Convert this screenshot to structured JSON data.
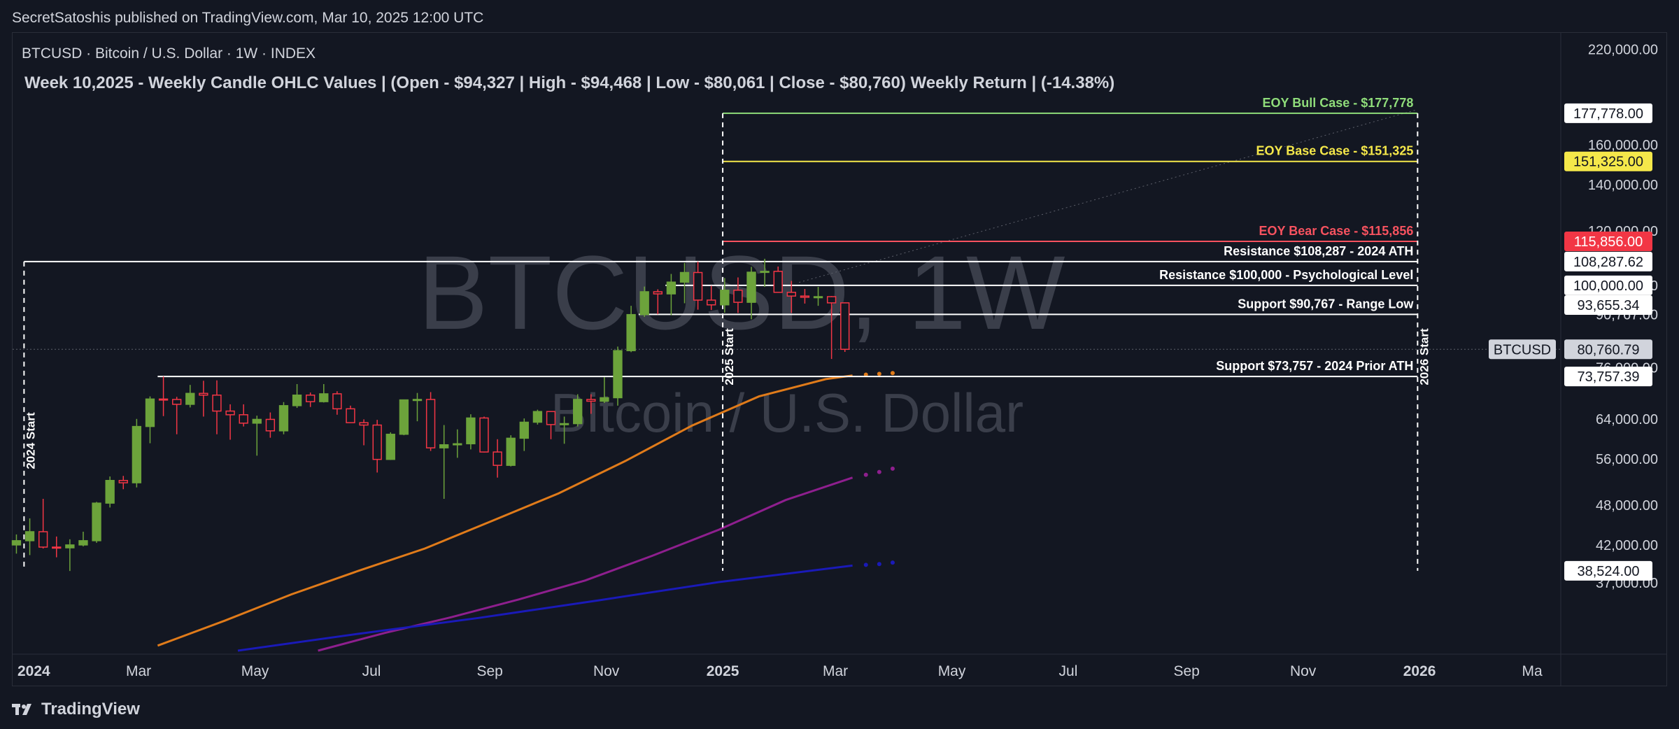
{
  "publisher": "SecretSatoshis published on TradingView.com, Mar 10, 2025 12:00 UTC",
  "brand": "TradingView",
  "chart_data": {
    "type": "candlestick",
    "symbol_line": "BTCUSD · Bitcoin / U.S. Dollar · 1W · INDEX",
    "title": "Week 10,2025 - Weekly Candle OHLC Values | (Open - $94,327 | High - $94,468 | Low - $80,061 | Close - $80,760) Weekly Return | (-14.38%)",
    "watermark": {
      "main": "BTCUSD, 1W",
      "sub": "Bitcoin / U.S. Dollar"
    },
    "log_scale": true,
    "y_range": [
      29500,
      232000
    ],
    "x_range": [
      "2023-12-26",
      "2026-03-16"
    ],
    "x_ticks": [
      {
        "label": "2024",
        "date": "2024-01-01",
        "bold": true
      },
      {
        "label": "Mar",
        "date": "2024-03-01",
        "bold": false
      },
      {
        "label": "May",
        "date": "2024-05-01",
        "bold": false
      },
      {
        "label": "Jul",
        "date": "2024-07-01",
        "bold": false
      },
      {
        "label": "Sep",
        "date": "2024-09-01",
        "bold": false
      },
      {
        "label": "Nov",
        "date": "2024-11-01",
        "bold": false
      },
      {
        "label": "2025",
        "date": "2025-01-01",
        "bold": true
      },
      {
        "label": "Mar",
        "date": "2025-03-01",
        "bold": false
      },
      {
        "label": "May",
        "date": "2025-05-01",
        "bold": false
      },
      {
        "label": "Jul",
        "date": "2025-07-01",
        "bold": false
      },
      {
        "label": "Sep",
        "date": "2025-09-01",
        "bold": false
      },
      {
        "label": "Nov",
        "date": "2025-11-01",
        "bold": false
      },
      {
        "label": "2026",
        "date": "2026-01-01",
        "bold": true
      },
      {
        "label": "Ma",
        "date": "2026-03-01",
        "bold": false
      }
    ],
    "y_ticks": [
      "220,000.00",
      "160,000.00",
      "140,000.00",
      "120,000.00",
      "100,000.00",
      "90,767.00",
      "76,000.00",
      "64,000.00",
      "56,000.00",
      "48,000.00",
      "42,000.00",
      "37,000.00"
    ],
    "price_badges": [
      {
        "label": "177,778.00",
        "value": 177778,
        "bg": "#ffffff",
        "fg": "#131722"
      },
      {
        "label": "151,325.00",
        "value": 151325,
        "bg": "#f5e84a",
        "fg": "#131722"
      },
      {
        "label": "115,856.00",
        "value": 115856,
        "bg": "#f23645",
        "fg": "#ffffff"
      },
      {
        "label": "108,287.62",
        "value": 108287.62,
        "bg": "#ffffff",
        "fg": "#131722"
      },
      {
        "label": "100,000.00",
        "value": 100000,
        "bg": "#ffffff",
        "fg": "#131722"
      },
      {
        "label": "93,655.34",
        "value": 93655.34,
        "bg": "#ffffff",
        "fg": "#131722"
      },
      {
        "label": "80,760.79",
        "value": 80760.79,
        "bg": "#d1d4dc",
        "fg": "#131722"
      },
      {
        "label": "73,757.39",
        "value": 73757.39,
        "bg": "#ffffff",
        "fg": "#131722"
      },
      {
        "label": "38,524.00",
        "value": 38524,
        "bg": "#ffffff",
        "fg": "#131722"
      }
    ],
    "symbol_badge": "BTCUSD",
    "levels": [
      {
        "label": "EOY Bull Case - $177,778",
        "value": 177778,
        "color": "#8fdc7a",
        "start": "2025-01-01",
        "end": "2025-12-31"
      },
      {
        "label": "EOY Base Case - $151,325",
        "value": 151325,
        "color": "#f5e84a",
        "start": "2025-01-01",
        "end": "2025-12-31"
      },
      {
        "label": "EOY Bear Case - $115,856",
        "value": 115856,
        "color": "#f7525f",
        "start": "2025-01-01",
        "end": "2025-12-31"
      },
      {
        "label": "Resistance $108,287 - 2024 ATH",
        "value": 108287,
        "color": "#ffffff",
        "start": "2024-01-01",
        "end": "2025-12-31"
      },
      {
        "label": "Resistance $100,000 - Psychological Level",
        "value": 100000,
        "color": "#ffffff",
        "start": "2024-12-02",
        "end": "2025-12-31"
      },
      {
        "label": "Support $90,767 - Range Low",
        "value": 90767,
        "color": "#ffffff",
        "start": "2024-11-18",
        "end": "2025-12-31"
      },
      {
        "label": "Support $73,757 - 2024 Prior ATH",
        "value": 73757,
        "color": "#ffffff",
        "start": "2024-03-11",
        "end": "2025-12-31"
      }
    ],
    "verticals": [
      {
        "label": "2024 Start",
        "date": "2024-01-01",
        "top": 108287,
        "bottom": 38524
      },
      {
        "label": "2025 Start",
        "date": "2025-01-01",
        "top": 177778,
        "bottom": 38524
      },
      {
        "label": "2026 Start",
        "date": "2025-12-31",
        "top": 177778,
        "bottom": 38524
      }
    ],
    "candles": [
      {
        "date": "2023-12-25",
        "o": 42000,
        "h": 43500,
        "l": 40800,
        "c": 42600
      },
      {
        "date": "2024-01-01",
        "o": 42600,
        "h": 45900,
        "l": 40600,
        "c": 43900
      },
      {
        "date": "2024-01-08",
        "o": 43900,
        "h": 49000,
        "l": 41500,
        "c": 41700
      },
      {
        "date": "2024-01-15",
        "o": 41700,
        "h": 43200,
        "l": 40300,
        "c": 41600
      },
      {
        "date": "2024-01-22",
        "o": 41600,
        "h": 42800,
        "l": 38500,
        "c": 42000
      },
      {
        "date": "2024-01-29",
        "o": 42000,
        "h": 43900,
        "l": 41800,
        "c": 42600
      },
      {
        "date": "2024-02-05",
        "o": 42600,
        "h": 48500,
        "l": 42300,
        "c": 48300
      },
      {
        "date": "2024-02-12",
        "o": 48300,
        "h": 52800,
        "l": 47600,
        "c": 52100
      },
      {
        "date": "2024-02-19",
        "o": 52100,
        "h": 52900,
        "l": 50600,
        "c": 51700
      },
      {
        "date": "2024-02-26",
        "o": 51700,
        "h": 64000,
        "l": 50900,
        "c": 62400
      },
      {
        "date": "2024-03-04",
        "o": 62400,
        "h": 69000,
        "l": 59000,
        "c": 68400
      },
      {
        "date": "2024-03-11",
        "o": 68400,
        "h": 73757,
        "l": 64600,
        "c": 68300
      },
      {
        "date": "2024-03-18",
        "o": 68300,
        "h": 68900,
        "l": 60800,
        "c": 67200
      },
      {
        "date": "2024-03-25",
        "o": 67200,
        "h": 71700,
        "l": 66500,
        "c": 69700
      },
      {
        "date": "2024-04-01",
        "o": 69700,
        "h": 72700,
        "l": 64500,
        "c": 69300
      },
      {
        "date": "2024-04-08",
        "o": 69300,
        "h": 72800,
        "l": 60800,
        "c": 65700
      },
      {
        "date": "2024-04-15",
        "o": 65700,
        "h": 67200,
        "l": 59700,
        "c": 64900
      },
      {
        "date": "2024-04-22",
        "o": 64900,
        "h": 67200,
        "l": 62400,
        "c": 63100
      },
      {
        "date": "2024-04-29",
        "o": 63100,
        "h": 64700,
        "l": 56600,
        "c": 63900
      },
      {
        "date": "2024-05-06",
        "o": 63900,
        "h": 65400,
        "l": 60100,
        "c": 61500
      },
      {
        "date": "2024-05-13",
        "o": 61500,
        "h": 67700,
        "l": 60800,
        "c": 66900
      },
      {
        "date": "2024-05-20",
        "o": 66900,
        "h": 71900,
        "l": 66400,
        "c": 69300
      },
      {
        "date": "2024-05-27",
        "o": 69300,
        "h": 69900,
        "l": 66600,
        "c": 67800
      },
      {
        "date": "2024-06-03",
        "o": 67800,
        "h": 71900,
        "l": 67600,
        "c": 69600
      },
      {
        "date": "2024-06-10",
        "o": 69600,
        "h": 70200,
        "l": 64900,
        "c": 66200
      },
      {
        "date": "2024-06-17",
        "o": 66200,
        "h": 66900,
        "l": 63400,
        "c": 63200
      },
      {
        "date": "2024-06-24",
        "o": 63200,
        "h": 63900,
        "l": 58600,
        "c": 62700
      },
      {
        "date": "2024-07-01",
        "o": 62700,
        "h": 63800,
        "l": 53500,
        "c": 55900
      },
      {
        "date": "2024-07-08",
        "o": 55900,
        "h": 61200,
        "l": 55800,
        "c": 60800
      },
      {
        "date": "2024-07-15",
        "o": 60800,
        "h": 68300,
        "l": 60600,
        "c": 68200
      },
      {
        "date": "2024-07-22",
        "o": 68200,
        "h": 69800,
        "l": 63500,
        "c": 68300
      },
      {
        "date": "2024-07-29",
        "o": 68300,
        "h": 70000,
        "l": 57500,
        "c": 58100
      },
      {
        "date": "2024-08-05",
        "o": 58100,
        "h": 62700,
        "l": 49000,
        "c": 58700
      },
      {
        "date": "2024-08-12",
        "o": 58700,
        "h": 61800,
        "l": 56200,
        "c": 58900
      },
      {
        "date": "2024-08-19",
        "o": 58900,
        "h": 65000,
        "l": 57800,
        "c": 64200
      },
      {
        "date": "2024-08-26",
        "o": 64200,
        "h": 64500,
        "l": 57200,
        "c": 57300
      },
      {
        "date": "2024-09-02",
        "o": 57300,
        "h": 59800,
        "l": 52600,
        "c": 54800
      },
      {
        "date": "2024-09-09",
        "o": 54800,
        "h": 60600,
        "l": 54600,
        "c": 60000
      },
      {
        "date": "2024-09-16",
        "o": 60000,
        "h": 64100,
        "l": 57500,
        "c": 63300
      },
      {
        "date": "2024-09-23",
        "o": 63300,
        "h": 66000,
        "l": 62800,
        "c": 65600
      },
      {
        "date": "2024-09-30",
        "o": 65600,
        "h": 65700,
        "l": 59800,
        "c": 62800
      },
      {
        "date": "2024-10-07",
        "o": 62800,
        "h": 64500,
        "l": 58900,
        "c": 63000
      },
      {
        "date": "2024-10-14",
        "o": 63000,
        "h": 69500,
        "l": 62400,
        "c": 68300
      },
      {
        "date": "2024-10-21",
        "o": 68300,
        "h": 69500,
        "l": 65100,
        "c": 67900
      },
      {
        "date": "2024-10-28",
        "o": 67900,
        "h": 73600,
        "l": 67500,
        "c": 68700
      },
      {
        "date": "2024-11-04",
        "o": 68700,
        "h": 81500,
        "l": 66900,
        "c": 80400
      },
      {
        "date": "2024-11-11",
        "o": 80400,
        "h": 93400,
        "l": 80000,
        "c": 90700
      },
      {
        "date": "2024-11-18",
        "o": 90700,
        "h": 99600,
        "l": 90000,
        "c": 97900
      },
      {
        "date": "2024-11-25",
        "o": 97900,
        "h": 98700,
        "l": 90800,
        "c": 97200
      },
      {
        "date": "2024-12-02",
        "o": 97200,
        "h": 103900,
        "l": 90500,
        "c": 101100
      },
      {
        "date": "2024-12-09",
        "o": 101100,
        "h": 107800,
        "l": 94200,
        "c": 104400
      },
      {
        "date": "2024-12-16",
        "o": 104400,
        "h": 108287,
        "l": 92200,
        "c": 95200
      },
      {
        "date": "2024-12-23",
        "o": 95200,
        "h": 99900,
        "l": 92100,
        "c": 93700
      },
      {
        "date": "2024-12-30",
        "o": 93700,
        "h": 102500,
        "l": 91300,
        "c": 98400
      },
      {
        "date": "2025-01-06",
        "o": 98400,
        "h": 102700,
        "l": 91200,
        "c": 94500
      },
      {
        "date": "2025-01-13",
        "o": 94500,
        "h": 106400,
        "l": 89300,
        "c": 104500
      },
      {
        "date": "2025-01-20",
        "o": 104500,
        "h": 109300,
        "l": 99500,
        "c": 104800
      },
      {
        "date": "2025-01-27",
        "o": 104800,
        "h": 106500,
        "l": 97800,
        "c": 97700
      },
      {
        "date": "2025-02-03",
        "o": 97700,
        "h": 101500,
        "l": 91200,
        "c": 96500
      },
      {
        "date": "2025-02-10",
        "o": 96500,
        "h": 98800,
        "l": 94100,
        "c": 96100
      },
      {
        "date": "2025-02-17",
        "o": 96100,
        "h": 99500,
        "l": 93400,
        "c": 96300
      },
      {
        "date": "2025-02-24",
        "o": 96300,
        "h": 96500,
        "l": 78200,
        "c": 94327
      },
      {
        "date": "2025-03-03",
        "o": 94327,
        "h": 94468,
        "l": 80061,
        "c": 80760
      }
    ],
    "projection_dates": [
      "2025-03-17",
      "2025-03-24",
      "2025-03-31"
    ],
    "moving_averages": [
      {
        "color": "#e07b1a",
        "points": [
          [
            "2024-03-11",
            30000
          ],
          [
            "2024-04-15",
            32600
          ],
          [
            "2024-05-20",
            35600
          ],
          [
            "2024-06-24",
            38500
          ],
          [
            "2024-07-29",
            41500
          ],
          [
            "2024-09-02",
            45500
          ],
          [
            "2024-10-07",
            49900
          ],
          [
            "2024-11-11",
            55600
          ],
          [
            "2024-12-16",
            62600
          ],
          [
            "2025-01-20",
            69000
          ],
          [
            "2025-02-24",
            73100
          ],
          [
            "2025-03-10",
            74000
          ]
        ],
        "projection": [
          74200,
          74400,
          74600
        ]
      },
      {
        "color": "#8e1f8e",
        "points": [
          [
            "2024-06-03",
            29500
          ],
          [
            "2024-07-08",
            31300
          ],
          [
            "2024-08-12",
            33000
          ],
          [
            "2024-09-16",
            35000
          ],
          [
            "2024-10-21",
            37300
          ],
          [
            "2024-11-25",
            40500
          ],
          [
            "2024-12-30",
            44200
          ],
          [
            "2025-02-03",
            48800
          ],
          [
            "2025-03-10",
            52600
          ]
        ],
        "projection": [
          53100,
          53600,
          54200
        ]
      },
      {
        "color": "#1a1ab8",
        "points": [
          [
            "2024-04-22",
            29500
          ],
          [
            "2024-06-24",
            31200
          ],
          [
            "2024-08-26",
            32900
          ],
          [
            "2024-10-28",
            34900
          ],
          [
            "2024-12-30",
            37100
          ],
          [
            "2025-03-10",
            39200
          ]
        ],
        "projection": [
          39300,
          39400,
          39600
        ]
      }
    ],
    "trend_line": {
      "color": "#5d606b",
      "points": [
        [
          "2025-02-10",
          101000
        ],
        [
          "2025-12-31",
          180000
        ]
      ]
    }
  }
}
